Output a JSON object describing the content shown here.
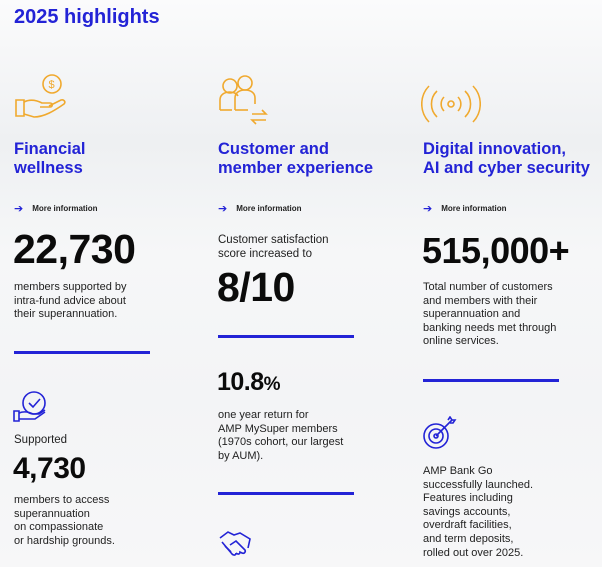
{
  "title": "2025 highlights",
  "more_label": "More information",
  "columns": [
    {
      "heading": [
        "Financial",
        "wellness"
      ],
      "stat1": {
        "value": "22,730",
        "text": [
          "members supported by",
          "intra-fund advice about",
          "their superannuation."
        ]
      },
      "stat2": {
        "prefix": "Supported",
        "value": "4,730",
        "text": [
          "members to access",
          "superannuation",
          "on compassionate",
          "or hardship grounds."
        ]
      }
    },
    {
      "heading": [
        "Customer and",
        "member experience"
      ],
      "stat1": {
        "prefix": [
          "Customer satisfaction",
          "score increased to"
        ],
        "value": "8/10"
      },
      "stat2": {
        "value": "10.8",
        "unit": "%",
        "text": [
          "one year return for",
          "AMP MySuper members",
          "(1970s cohort, our largest",
          "by AUM)."
        ]
      }
    },
    {
      "heading": [
        "Digital innovation,",
        "AI and cyber security"
      ],
      "stat1": {
        "value": "515,000+",
        "text": [
          "Total number of customers",
          "and members with their",
          "superannuation and",
          "banking needs met through",
          "online services."
        ]
      },
      "stat2": {
        "text": [
          "AMP Bank Go",
          "successfully launched.",
          "Features including",
          "savings accounts,",
          "overdraft facilities,",
          "and term deposits,",
          "rolled out over 2025."
        ]
      }
    }
  ],
  "colors": {
    "accent": "#2323d6",
    "icon_orange": "#f0a92e"
  }
}
